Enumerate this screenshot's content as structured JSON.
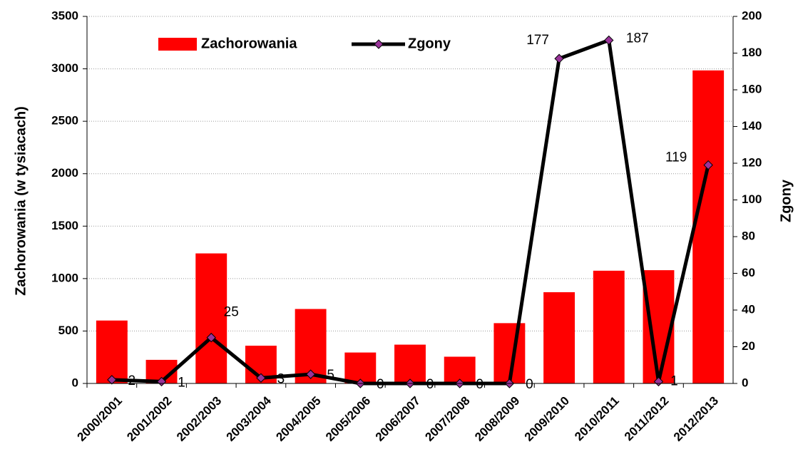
{
  "chart_data": {
    "type": "bar_line",
    "categories": [
      "2000/2001",
      "2001/2002",
      "2002/2003",
      "2003/2004",
      "2004/2005",
      "2005/2006",
      "2006/2007",
      "2007/2008",
      "2008/2009",
      "2009/2010",
      "2010/2011",
      "2011/2012",
      "2012/2013"
    ],
    "series": [
      {
        "name": "Zachorowania",
        "type": "bar",
        "color": "#ff0000",
        "values": [
          600,
          225,
          1240,
          360,
          710,
          295,
          370,
          255,
          575,
          870,
          1075,
          1080,
          2985
        ]
      },
      {
        "name": "Zgony",
        "type": "line",
        "axis": "y2",
        "color": "#000000",
        "marker_color": "#993399",
        "values": [
          2,
          1,
          25,
          3,
          5,
          0,
          0,
          0,
          0,
          177,
          187,
          1,
          119
        ]
      }
    ],
    "ylabel": "Zachorowania (w  tysiacach)",
    "y2label": "Zgony",
    "ylim": [
      0,
      3500
    ],
    "yticks": [
      0,
      500,
      1000,
      1500,
      2000,
      2500,
      3000,
      3500
    ],
    "y2lim": [
      0,
      200
    ],
    "y2ticks": [
      0,
      20,
      40,
      60,
      80,
      100,
      120,
      140,
      160,
      180,
      200
    ],
    "grid": true,
    "legend": "top"
  }
}
